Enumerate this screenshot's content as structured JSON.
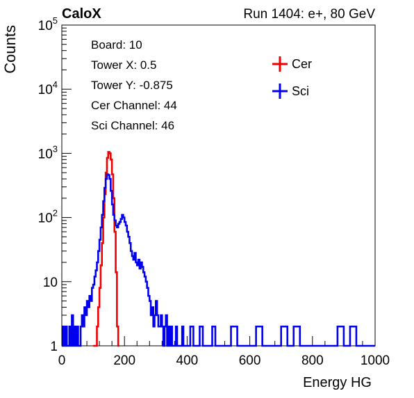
{
  "header": {
    "left": "CaloX",
    "right": "Run 1404: e+, 80 GeV"
  },
  "info_box": [
    "Board: 10",
    "Tower X: 0.5",
    "Tower Y: -0.875",
    "Cer Channel: 44",
    "Sci Channel: 46"
  ],
  "chart_data": {
    "type": "line",
    "title": "",
    "xlabel": "Energy HG",
    "ylabel": "Counts",
    "xlim": [
      0,
      1000
    ],
    "ylim": [
      1,
      100000
    ],
    "y_scale": "log",
    "grid": false,
    "legend_position": "top-right",
    "x_ticks": [
      "0",
      "200",
      "400",
      "600",
      "800",
      "1000"
    ],
    "y_ticks": [
      {
        "value": 1,
        "base": "1",
        "exp": ""
      },
      {
        "value": 10,
        "base": "10",
        "exp": ""
      },
      {
        "value": 100,
        "base": "10",
        "exp": "2"
      },
      {
        "value": 1000,
        "base": "10",
        "exp": "3"
      },
      {
        "value": 10000,
        "base": "10",
        "exp": "4"
      },
      {
        "value": 100000,
        "base": "10",
        "exp": "5"
      }
    ],
    "series": [
      {
        "name": "Cer",
        "color": "#ee0000",
        "points": [
          [
            100,
            1
          ],
          [
            108,
            1
          ],
          [
            112,
            2
          ],
          [
            116,
            4
          ],
          [
            120,
            8
          ],
          [
            124,
            18
          ],
          [
            128,
            40
          ],
          [
            132,
            100
          ],
          [
            136,
            230
          ],
          [
            140,
            500
          ],
          [
            144,
            850
          ],
          [
            148,
            1050
          ],
          [
            152,
            1000
          ],
          [
            156,
            800
          ],
          [
            160,
            470
          ],
          [
            164,
            200
          ],
          [
            168,
            60
          ],
          [
            172,
            14
          ],
          [
            176,
            2
          ],
          [
            180,
            1
          ]
        ]
      },
      {
        "name": "Sci",
        "color": "#0000ee",
        "points": [
          [
            0,
            1
          ],
          [
            4,
            2
          ],
          [
            8,
            1
          ],
          [
            12,
            2
          ],
          [
            16,
            1
          ],
          [
            20,
            1
          ],
          [
            24,
            2
          ],
          [
            28,
            1
          ],
          [
            32,
            3
          ],
          [
            36,
            1
          ],
          [
            40,
            2
          ],
          [
            44,
            1
          ],
          [
            48,
            2
          ],
          [
            52,
            1
          ],
          [
            56,
            1
          ],
          [
            60,
            2
          ],
          [
            64,
            3
          ],
          [
            68,
            2
          ],
          [
            72,
            4
          ],
          [
            76,
            3
          ],
          [
            80,
            5
          ],
          [
            84,
            4
          ],
          [
            88,
            6
          ],
          [
            92,
            5
          ],
          [
            96,
            8
          ],
          [
            100,
            9
          ],
          [
            104,
            12
          ],
          [
            108,
            15
          ],
          [
            112,
            20
          ],
          [
            116,
            30
          ],
          [
            120,
            45
          ],
          [
            124,
            70
          ],
          [
            128,
            110
          ],
          [
            132,
            180
          ],
          [
            136,
            290
          ],
          [
            140,
            400
          ],
          [
            144,
            470
          ],
          [
            148,
            460
          ],
          [
            152,
            400
          ],
          [
            156,
            260
          ],
          [
            160,
            160
          ],
          [
            164,
            110
          ],
          [
            168,
            90
          ],
          [
            172,
            75
          ],
          [
            176,
            70
          ],
          [
            180,
            80
          ],
          [
            184,
            85
          ],
          [
            188,
            95
          ],
          [
            192,
            110
          ],
          [
            196,
            100
          ],
          [
            200,
            85
          ],
          [
            204,
            75
          ],
          [
            208,
            60
          ],
          [
            212,
            50
          ],
          [
            216,
            40
          ],
          [
            220,
            30
          ],
          [
            224,
            25
          ],
          [
            228,
            22
          ],
          [
            232,
            28
          ],
          [
            236,
            20
          ],
          [
            240,
            18
          ],
          [
            244,
            22
          ],
          [
            248,
            16
          ],
          [
            252,
            20
          ],
          [
            256,
            17
          ],
          [
            260,
            14
          ],
          [
            264,
            12
          ],
          [
            268,
            10
          ],
          [
            272,
            8
          ],
          [
            276,
            6
          ],
          [
            280,
            5
          ],
          [
            284,
            3
          ],
          [
            288,
            4
          ],
          [
            292,
            2
          ],
          [
            296,
            3
          ],
          [
            300,
            5
          ],
          [
            304,
            3
          ],
          [
            308,
            2
          ],
          [
            312,
            2
          ],
          [
            316,
            3
          ],
          [
            320,
            2
          ],
          [
            324,
            1
          ],
          [
            328,
            2
          ],
          [
            332,
            3
          ],
          [
            336,
            1
          ],
          [
            340,
            2
          ],
          [
            344,
            1
          ],
          [
            348,
            2
          ],
          [
            352,
            1
          ],
          [
            356,
            1
          ],
          [
            360,
            1
          ],
          [
            364,
            2
          ],
          [
            368,
            1
          ],
          [
            372,
            1
          ],
          [
            376,
            1
          ],
          [
            380,
            1
          ],
          [
            384,
            2
          ],
          [
            388,
            1
          ],
          [
            392,
            1
          ],
          [
            396,
            1
          ],
          [
            400,
            1
          ],
          [
            410,
            2
          ],
          [
            420,
            1
          ],
          [
            430,
            1
          ],
          [
            440,
            2
          ],
          [
            450,
            1
          ],
          [
            460,
            1
          ],
          [
            470,
            1
          ],
          [
            480,
            2
          ],
          [
            490,
            1
          ],
          [
            500,
            1
          ],
          [
            520,
            1
          ],
          [
            540,
            2
          ],
          [
            560,
            1
          ],
          [
            580,
            1
          ],
          [
            600,
            1
          ],
          [
            620,
            2
          ],
          [
            640,
            1
          ],
          [
            660,
            1
          ],
          [
            680,
            1
          ],
          [
            700,
            2
          ],
          [
            720,
            1
          ],
          [
            740,
            2
          ],
          [
            760,
            1
          ],
          [
            780,
            1
          ],
          [
            800,
            1
          ],
          [
            820,
            1
          ],
          [
            840,
            1
          ],
          [
            860,
            1
          ],
          [
            880,
            2
          ],
          [
            900,
            1
          ],
          [
            920,
            2
          ],
          [
            940,
            1
          ],
          [
            960,
            1
          ],
          [
            980,
            1
          ],
          [
            1000,
            1
          ]
        ]
      }
    ]
  }
}
